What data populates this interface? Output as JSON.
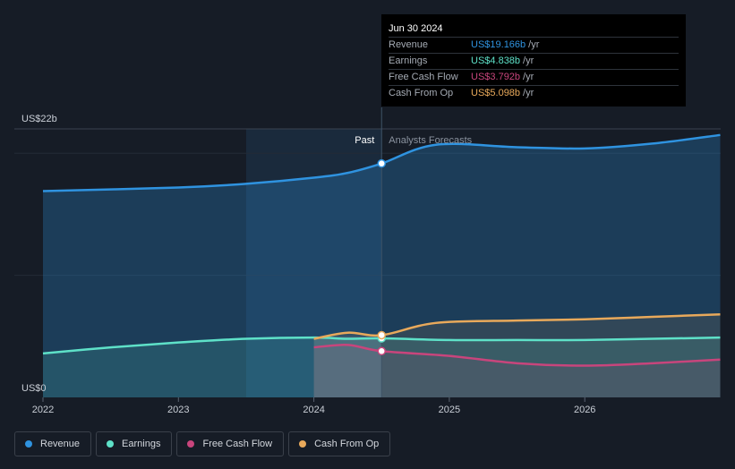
{
  "chart_data": {
    "type": "area",
    "x_ticks": [
      "2022",
      "2023",
      "2024",
      "2025",
      "2026"
    ],
    "y_ticks": [
      {
        "label": "US$22b",
        "value": 22
      },
      {
        "label": "US$0",
        "value": 0
      }
    ],
    "ylim": [
      0,
      22
    ],
    "xlim": [
      2021.83,
      2027.0
    ],
    "past_label": "Past",
    "forecast_label": "Analysts Forecasts",
    "divider_x": 2024.5,
    "series": [
      {
        "key": "revenue",
        "name": "Revenue",
        "color": "#2f93e0",
        "points": [
          [
            2022.0,
            16.9
          ],
          [
            2023.0,
            17.2
          ],
          [
            2023.5,
            17.5
          ],
          [
            2024.0,
            18.0
          ],
          [
            2024.25,
            18.4
          ],
          [
            2024.5,
            19.166
          ],
          [
            2024.9,
            20.7
          ],
          [
            2025.5,
            20.5
          ],
          [
            2026.0,
            20.4
          ],
          [
            2026.5,
            20.8
          ],
          [
            2027.0,
            21.5
          ]
        ]
      },
      {
        "key": "earnings",
        "name": "Earnings",
        "color": "#5ee1c8",
        "points": [
          [
            2022.0,
            3.6
          ],
          [
            2022.5,
            4.1
          ],
          [
            2023.0,
            4.5
          ],
          [
            2023.5,
            4.8
          ],
          [
            2024.0,
            4.9
          ],
          [
            2024.25,
            4.8
          ],
          [
            2024.5,
            4.838
          ],
          [
            2025.0,
            4.7
          ],
          [
            2025.5,
            4.7
          ],
          [
            2026.0,
            4.7
          ],
          [
            2026.5,
            4.8
          ],
          [
            2027.0,
            4.9
          ]
        ]
      },
      {
        "key": "fcf",
        "name": "Free Cash Flow",
        "color": "#c8457c",
        "points": [
          [
            2024.0,
            4.1
          ],
          [
            2024.25,
            4.3
          ],
          [
            2024.5,
            3.792
          ],
          [
            2025.0,
            3.4
          ],
          [
            2025.5,
            2.8
          ],
          [
            2026.0,
            2.6
          ],
          [
            2026.5,
            2.8
          ],
          [
            2027.0,
            3.1
          ]
        ]
      },
      {
        "key": "cfo",
        "name": "Cash From Op",
        "color": "#e8a95b",
        "points": [
          [
            2024.0,
            4.8
          ],
          [
            2024.25,
            5.3
          ],
          [
            2024.5,
            5.098
          ],
          [
            2024.9,
            6.1
          ],
          [
            2025.5,
            6.3
          ],
          [
            2026.0,
            6.4
          ],
          [
            2026.5,
            6.6
          ],
          [
            2027.0,
            6.8
          ]
        ]
      }
    ]
  },
  "tooltip": {
    "date": "Jun 30 2024",
    "rows": [
      {
        "label": "Revenue",
        "value": "US$19.166b",
        "unit": "/yr",
        "color": "#2f93e0"
      },
      {
        "label": "Earnings",
        "value": "US$4.838b",
        "unit": "/yr",
        "color": "#5ee1c8"
      },
      {
        "label": "Free Cash Flow",
        "value": "US$3.792b",
        "unit": "/yr",
        "color": "#c8457c"
      },
      {
        "label": "Cash From Op",
        "value": "US$5.098b",
        "unit": "/yr",
        "color": "#e8a95b"
      }
    ]
  },
  "legend": [
    {
      "label": "Revenue",
      "color": "#2f93e0"
    },
    {
      "label": "Earnings",
      "color": "#5ee1c8"
    },
    {
      "label": "Free Cash Flow",
      "color": "#c8457c"
    },
    {
      "label": "Cash From Op",
      "color": "#e8a95b"
    }
  ]
}
